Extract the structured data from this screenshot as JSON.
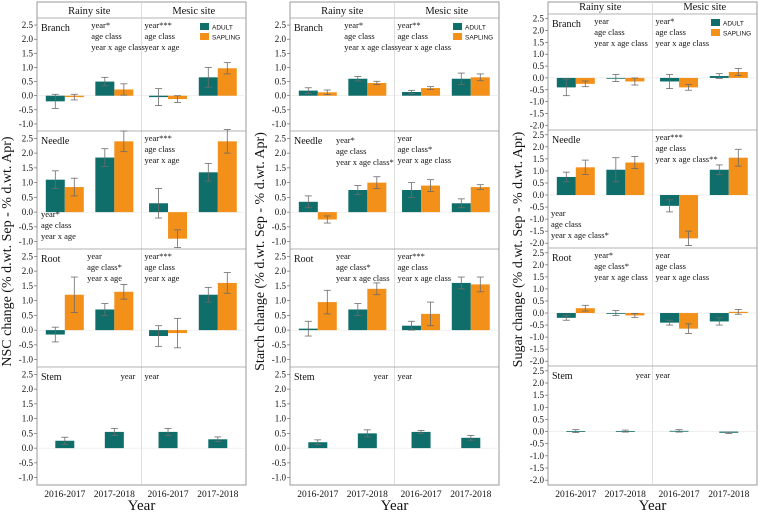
{
  "chart_data": [
    {
      "type": "bar",
      "title": "NSC",
      "ylabel": "NSC change (% d.wt. Sep - % d.wt. Apr)",
      "xlabel": "Year",
      "ylim": [
        -1.25,
        2.75
      ],
      "yticks": [
        -1.0,
        -0.5,
        0.0,
        0.5,
        1.0,
        1.5,
        2.0,
        2.5
      ],
      "sites": [
        "Rainy site",
        "Mesic site"
      ],
      "categories": [
        "2016-2017",
        "2017-2018",
        "2016-2017",
        "2017-2018"
      ],
      "series": [
        "ADULT",
        "SAPLING"
      ],
      "legend": {
        "entries": [
          "ADULT",
          "SAPLING"
        ],
        "position": "top-right"
      },
      "rows": [
        {
          "name": "Branch",
          "values": {
            "ADULT": [
              -0.2,
              0.5,
              -0.05,
              0.65
            ],
            "SAPLING": [
              -0.05,
              0.22,
              -0.12,
              0.97
            ]
          },
          "errors": {
            "ADULT": [
              0.25,
              0.15,
              0.3,
              0.35
            ],
            "SAPLING": [
              0.1,
              0.2,
              0.12,
              0.2
            ]
          },
          "stats": [
            {
              "lines": [
                "year*",
                "age class",
                "year x age class"
              ],
              "pos": "top-left-right"
            },
            {
              "lines": [
                "year***",
                "age class",
                "year x age"
              ],
              "pos": "top-right-left"
            }
          ]
        },
        {
          "name": "Needle",
          "values": {
            "ADULT": [
              1.1,
              1.85,
              0.3,
              1.35
            ],
            "SAPLING": [
              0.85,
              2.4,
              -0.9,
              2.4
            ]
          },
          "errors": {
            "ADULT": [
              0.3,
              0.3,
              0.5,
              0.3
            ],
            "SAPLING": [
              0.3,
              0.35,
              0.3,
              0.4
            ]
          },
          "stats": [
            {
              "lines": [
                "year*",
                "age class",
                "year x age"
              ],
              "pos": "bottom-left"
            },
            {
              "lines": [
                "year***",
                "age class",
                "year x age"
              ],
              "pos": "top-right-left"
            }
          ]
        },
        {
          "name": "Root",
          "values": {
            "ADULT": [
              -0.15,
              0.7,
              -0.2,
              1.2
            ],
            "SAPLING": [
              1.2,
              1.3,
              -0.1,
              1.6
            ]
          },
          "errors": {
            "ADULT": [
              0.25,
              0.2,
              0.35,
              0.25
            ],
            "SAPLING": [
              0.6,
              0.25,
              0.5,
              0.35
            ]
          },
          "stats": [
            {
              "lines": [
                "year",
                "age class*",
                "year x age"
              ],
              "pos": "top-left-right"
            },
            {
              "lines": [
                "year***",
                "age class",
                "year x age"
              ],
              "pos": "top-right-left"
            }
          ]
        },
        {
          "name": "Stem",
          "values": {
            "ADULT": [
              0.25,
              0.55,
              0.55,
              0.3
            ]
          },
          "errors": {
            "ADULT": [
              0.12,
              0.12,
              0.12,
              0.08
            ]
          },
          "stats": [
            {
              "lines": [
                "year"
              ],
              "pos": "top-left-right"
            },
            {
              "lines": [
                "year"
              ],
              "pos": "top-right-left"
            }
          ]
        }
      ]
    },
    {
      "type": "bar",
      "title": "Starch",
      "ylabel": "Starch change (% d.wt. Sep - % d.wt. Apr)",
      "xlabel": "Year",
      "ylim": [
        -1.25,
        2.75
      ],
      "yticks": [
        -1.0,
        -0.5,
        0.0,
        0.5,
        1.0,
        1.5,
        2.0,
        2.5
      ],
      "sites": [
        "Rainy site",
        "Mesic site"
      ],
      "categories": [
        "2016-2017",
        "2017-2018",
        "2016-2017",
        "2017-2018"
      ],
      "series": [
        "ADULT",
        "SAPLING"
      ],
      "legend": {
        "entries": [
          "ADULT",
          "SAPLING"
        ],
        "position": "top-right"
      },
      "rows": [
        {
          "name": "Branch",
          "values": {
            "ADULT": [
              0.18,
              0.6,
              0.13,
              0.6
            ],
            "SAPLING": [
              0.12,
              0.45,
              0.27,
              0.65
            ]
          },
          "errors": {
            "ADULT": [
              0.1,
              0.08,
              0.06,
              0.2
            ],
            "SAPLING": [
              0.08,
              0.06,
              0.05,
              0.12
            ]
          },
          "stats": [
            {
              "lines": [
                "year*",
                "age class",
                "year x age class"
              ],
              "pos": "top-left-right"
            },
            {
              "lines": [
                "year**",
                "age class",
                "year x age class"
              ],
              "pos": "top-right-left"
            }
          ]
        },
        {
          "name": "Needle",
          "values": {
            "ADULT": [
              0.35,
              0.75,
              0.75,
              0.3
            ],
            "SAPLING": [
              -0.25,
              1.0,
              0.9,
              0.85
            ]
          },
          "errors": {
            "ADULT": [
              0.2,
              0.15,
              0.25,
              0.15
            ],
            "SAPLING": [
              0.12,
              0.2,
              0.2,
              0.08
            ]
          },
          "stats": [
            {
              "lines": [
                "year*",
                "age class",
                "year x age class*"
              ],
              "pos": "top-left-right"
            },
            {
              "lines": [
                "year",
                "age class*",
                "year x age class"
              ],
              "pos": "top-right-left"
            }
          ]
        },
        {
          "name": "Root",
          "values": {
            "ADULT": [
              0.05,
              0.7,
              0.15,
              1.6
            ],
            "SAPLING": [
              0.95,
              1.4,
              0.55,
              1.55
            ]
          },
          "errors": {
            "ADULT": [
              0.25,
              0.2,
              0.15,
              0.2
            ],
            "SAPLING": [
              0.4,
              0.2,
              0.4,
              0.25
            ]
          },
          "stats": [
            {
              "lines": [
                "year",
                "age class*",
                "year x age class"
              ],
              "pos": "top-left-right"
            },
            {
              "lines": [
                "year***",
                "age class",
                "year x age class"
              ],
              "pos": "top-right-left"
            }
          ]
        },
        {
          "name": "Stem",
          "values": {
            "ADULT": [
              0.2,
              0.5,
              0.55,
              0.35
            ]
          },
          "errors": {
            "ADULT": [
              0.08,
              0.12,
              0.05,
              0.08
            ]
          },
          "stats": [
            {
              "lines": [
                "year"
              ],
              "pos": "top-left-right"
            },
            {
              "lines": [
                "year"
              ],
              "pos": "top-right-left"
            }
          ]
        }
      ]
    },
    {
      "type": "bar",
      "title": "Sugar",
      "ylabel": "Sugar change (% d.wt. Sep - % d.wt. Apr)",
      "xlabel": "Year",
      "ylim": [
        -2.2,
        2.7
      ],
      "yticks": [
        -2.0,
        -1.5,
        -1.0,
        -0.5,
        0.0,
        0.5,
        1.0,
        1.5,
        2.0,
        2.5
      ],
      "sites": [
        "Rainy site",
        "Mesic site"
      ],
      "categories": [
        "2016-2017",
        "2017-2018",
        "2016-2017",
        "2017-2018"
      ],
      "series": [
        "ADULT",
        "SAPLING"
      ],
      "legend": {
        "entries": [
          "ADULT",
          "SAPLING"
        ],
        "position": "top-right"
      },
      "rows": [
        {
          "name": "Branch",
          "values": {
            "ADULT": [
              -0.4,
              0.0,
              -0.15,
              0.08
            ],
            "SAPLING": [
              -0.25,
              -0.15,
              -0.4,
              0.25
            ]
          },
          "errors": {
            "ADULT": [
              0.35,
              0.15,
              0.3,
              0.1
            ],
            "SAPLING": [
              0.12,
              0.15,
              0.12,
              0.15
            ]
          },
          "stats": [
            {
              "lines": [
                "year",
                "age class",
                "year x age class"
              ],
              "pos": "top-left-right"
            },
            {
              "lines": [
                "year*",
                "age class",
                "year x age class"
              ],
              "pos": "top-right-left"
            }
          ]
        },
        {
          "name": "Needle",
          "values": {
            "ADULT": [
              0.75,
              1.05,
              -0.45,
              1.05
            ],
            "SAPLING": [
              1.15,
              1.35,
              -1.8,
              1.55
            ]
          },
          "errors": {
            "ADULT": [
              0.2,
              0.5,
              0.25,
              0.2
            ],
            "SAPLING": [
              0.3,
              0.25,
              0.3,
              0.35
            ]
          },
          "stats": [
            {
              "lines": [
                "year",
                "age class",
                "year x age class*"
              ],
              "pos": "bottom-left"
            },
            {
              "lines": [
                "year***",
                "age class",
                "year x age class**"
              ],
              "pos": "top-right-left"
            }
          ]
        },
        {
          "name": "Root",
          "values": {
            "ADULT": [
              -0.2,
              0.0,
              -0.4,
              -0.35
            ],
            "SAPLING": [
              0.2,
              -0.1,
              -0.65,
              0.05
            ]
          },
          "errors": {
            "ADULT": [
              0.1,
              0.1,
              0.1,
              0.15
            ],
            "SAPLING": [
              0.12,
              0.08,
              0.2,
              0.1
            ]
          },
          "stats": [
            {
              "lines": [
                "year*",
                "age class*",
                "year x age class"
              ],
              "pos": "top-left-right"
            },
            {
              "lines": [
                "year",
                "age class",
                "year x age class"
              ],
              "pos": "top-right-left"
            }
          ]
        },
        {
          "name": "Stem",
          "values": {
            "ADULT": [
              0.02,
              0.02,
              0.03,
              -0.05
            ]
          },
          "errors": {
            "ADULT": [
              0.06,
              0.04,
              0.05,
              0.03
            ]
          },
          "stats": [
            {
              "lines": [
                "year"
              ],
              "pos": "top-left-right"
            },
            {
              "lines": [
                "year"
              ],
              "pos": "top-right-left"
            }
          ]
        }
      ]
    }
  ],
  "colors": {
    "adult": "#0f6e6a",
    "sapling": "#f39019",
    "panel_border": "#9a9a9a",
    "divider": "#d6d6d6",
    "error": "#6b6b6b"
  }
}
